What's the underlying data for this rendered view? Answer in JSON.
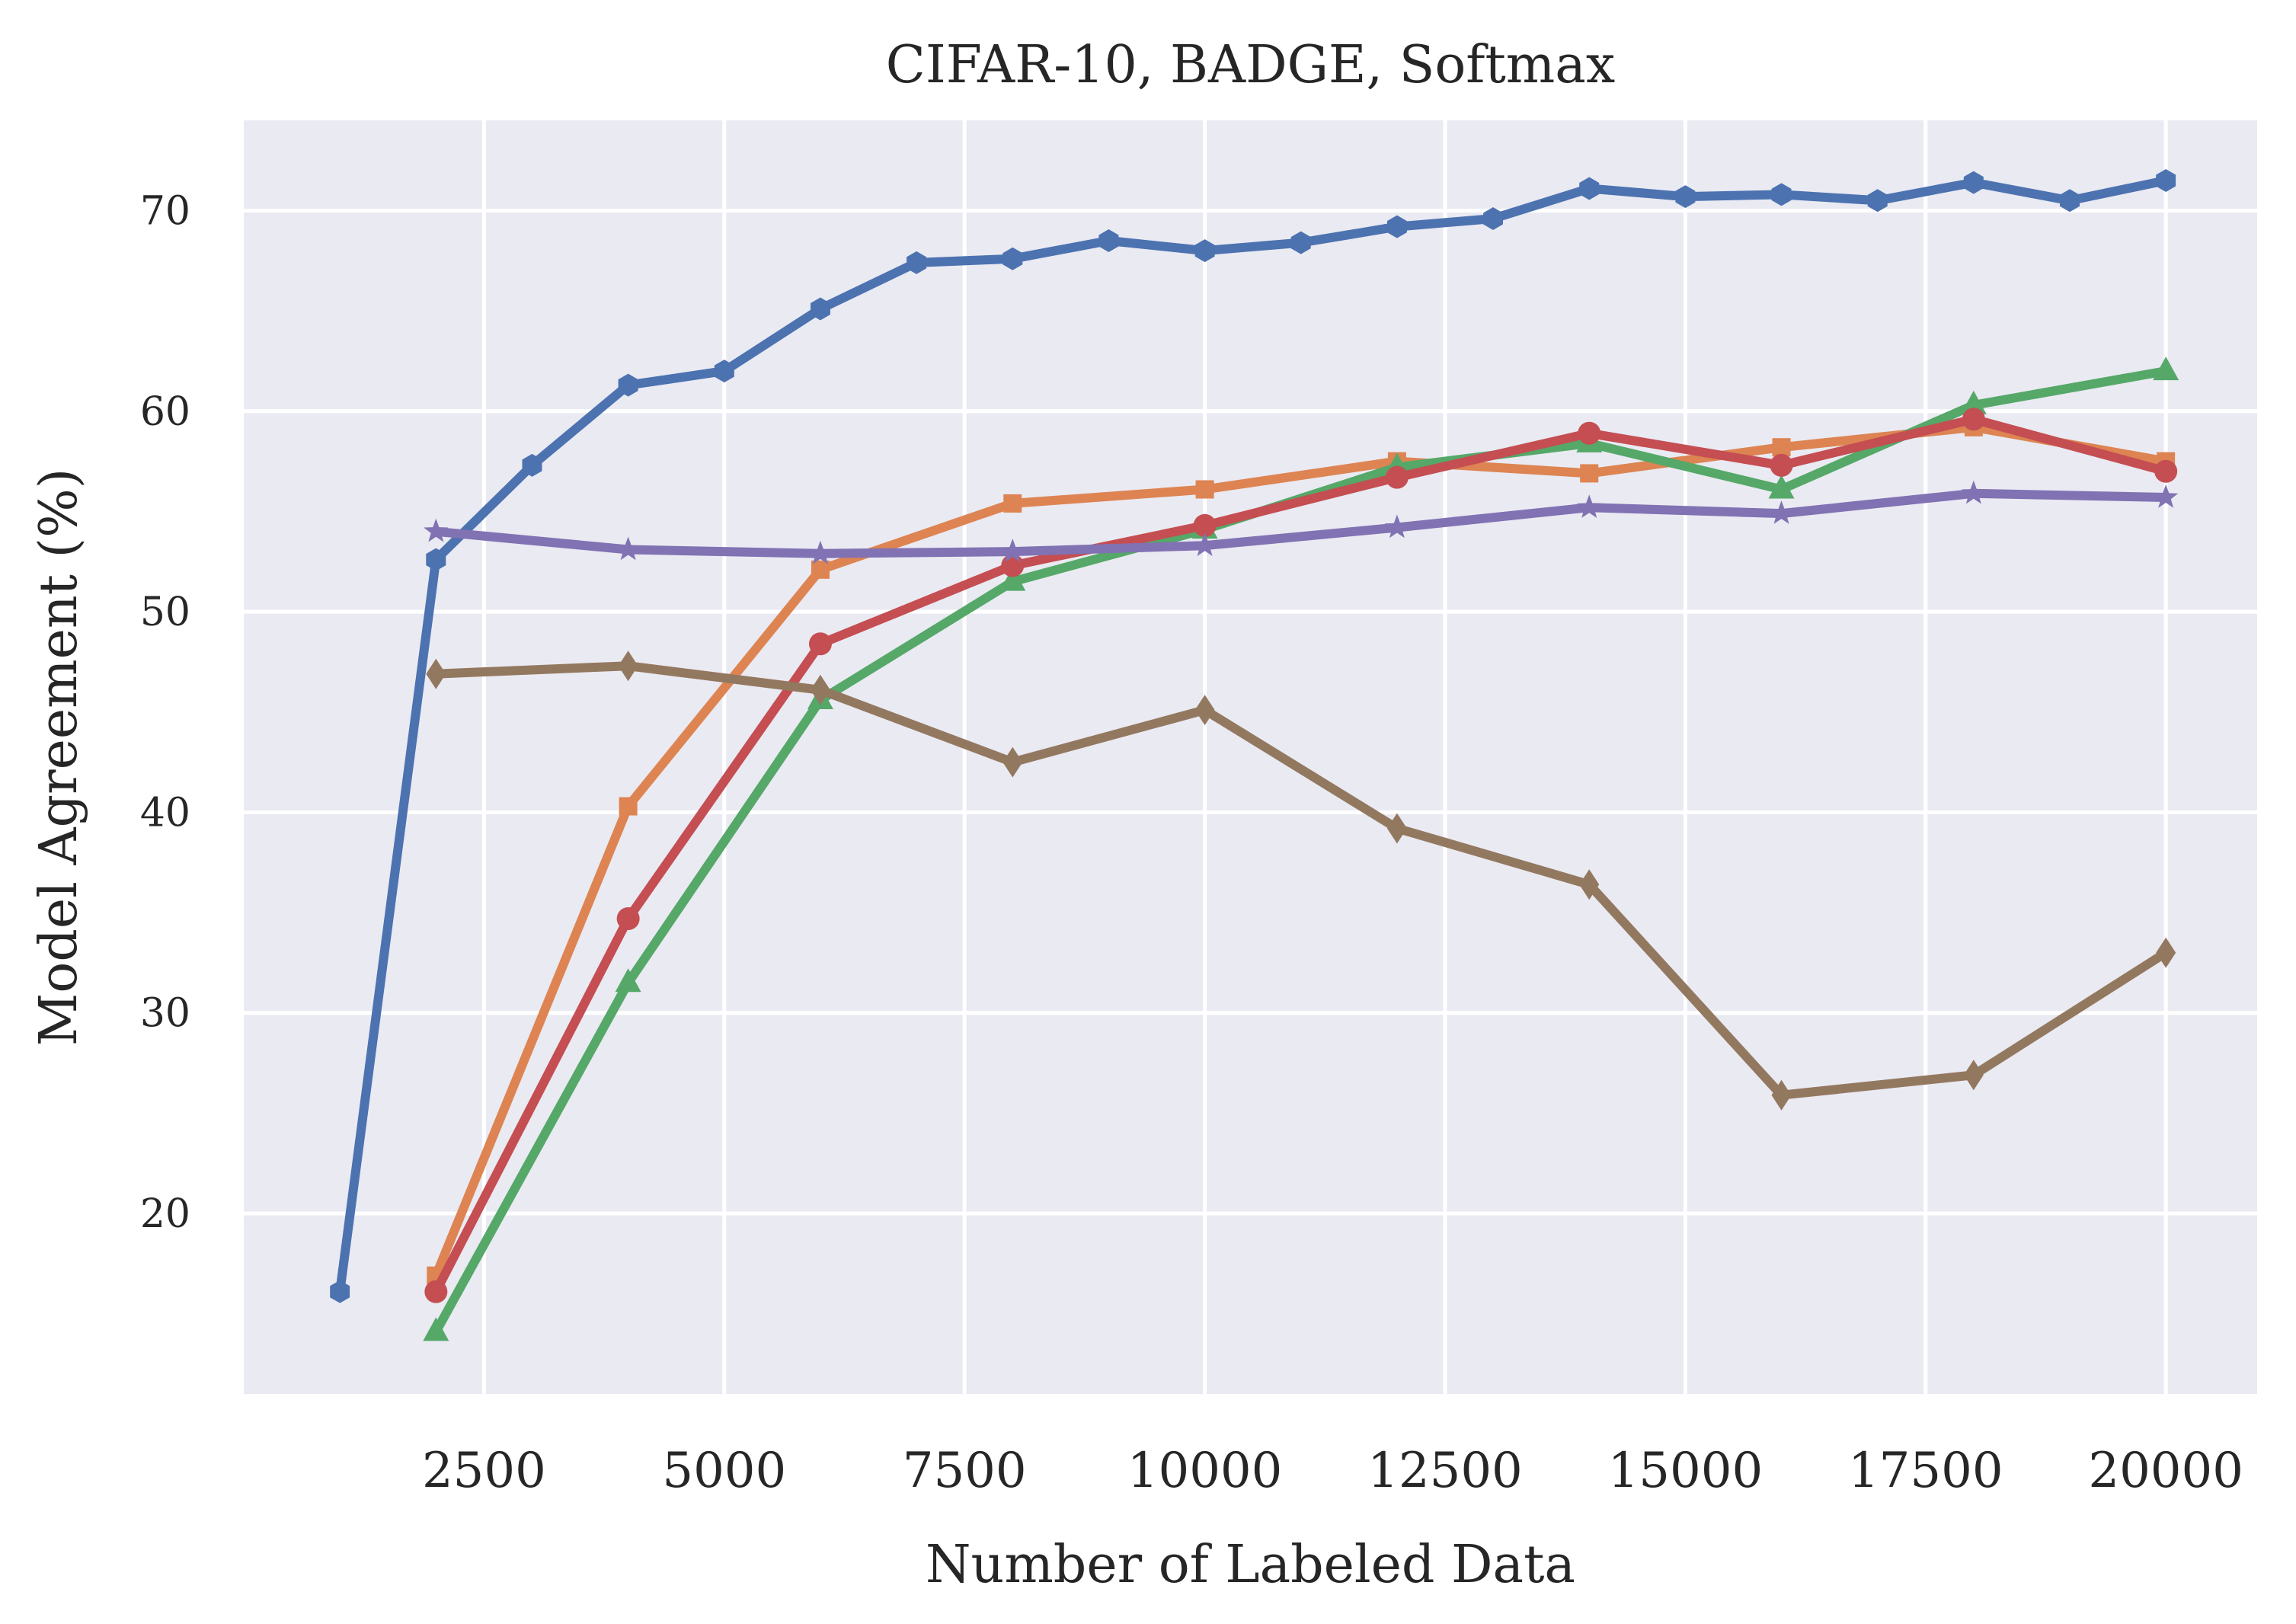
{
  "chart_data": {
    "type": "line",
    "title": "CIFAR-10, BADGE, Softmax",
    "xlabel": "Number of Labeled Data",
    "ylabel": "Model Agreement (%)",
    "xlim": [
      0,
      20950
    ],
    "ylim": [
      11,
      74.5
    ],
    "xticks": [
      2500,
      5000,
      7500,
      10000,
      12500,
      15000,
      17500,
      20000
    ],
    "yticks": [
      20,
      30,
      40,
      50,
      60,
      70
    ],
    "grid": true,
    "background": "#eaeaf2",
    "series": [
      {
        "color": "#4c72b0",
        "marker": "hexagon",
        "x": [
          1000,
          2000,
          3000,
          4000,
          5000,
          6000,
          7000,
          8000,
          9000,
          10000,
          11000,
          12000,
          13000,
          14000,
          15000,
          16000,
          17000,
          18000,
          19000,
          20000
        ],
        "y": [
          16.1,
          52.6,
          57.3,
          61.3,
          62.0,
          65.1,
          67.4,
          67.6,
          68.5,
          68.0,
          68.4,
          69.2,
          69.6,
          71.1,
          70.7,
          70.8,
          70.5,
          71.4,
          70.5,
          71.5
        ]
      },
      {
        "color": "#dd8452",
        "marker": "square",
        "x": [
          2000,
          4000,
          6000,
          8000,
          10000,
          12000,
          14000,
          16000,
          18000,
          20000
        ],
        "y": [
          16.9,
          40.3,
          52.1,
          55.4,
          56.1,
          57.5,
          56.9,
          58.2,
          59.2,
          57.5
        ]
      },
      {
        "color": "#55a868",
        "marker": "triangle",
        "x": [
          2000,
          4000,
          6000,
          8000,
          10000,
          12000,
          14000,
          16000,
          18000,
          20000
        ],
        "y": [
          14.1,
          31.5,
          45.6,
          51.5,
          54.1,
          57.2,
          58.4,
          56.1,
          60.3,
          62.0
        ]
      },
      {
        "color": "#c44e52",
        "marker": "circle",
        "x": [
          2000,
          4000,
          6000,
          8000,
          10000,
          12000,
          14000,
          16000,
          18000,
          20000
        ],
        "y": [
          16.1,
          34.7,
          48.4,
          52.3,
          54.3,
          56.7,
          58.9,
          57.3,
          59.6,
          57.0
        ]
      },
      {
        "color": "#8172b3",
        "marker": "star",
        "x": [
          2000,
          4000,
          6000,
          8000,
          10000,
          12000,
          14000,
          16000,
          18000,
          20000
        ],
        "y": [
          54.0,
          53.1,
          52.9,
          53.0,
          53.3,
          54.2,
          55.2,
          54.9,
          55.9,
          55.7
        ]
      },
      {
        "color": "#937860",
        "marker": "diamond",
        "x": [
          2000,
          4000,
          6000,
          8000,
          10000,
          12000,
          14000,
          16000,
          18000,
          20000
        ],
        "y": [
          46.9,
          47.3,
          46.1,
          42.5,
          45.1,
          39.2,
          36.4,
          25.9,
          26.9,
          33.0
        ]
      }
    ]
  }
}
